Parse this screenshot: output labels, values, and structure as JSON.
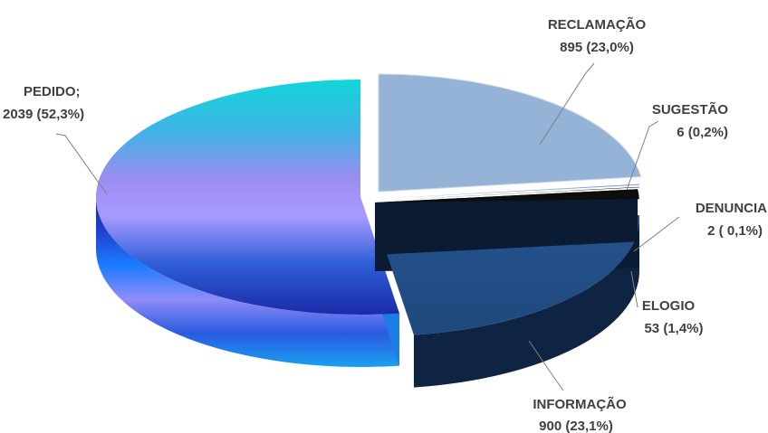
{
  "chart_data": {
    "type": "pie",
    "style": "3d-exploded",
    "slices": [
      {
        "name": "PEDIDO",
        "value": 2039,
        "percent_label": "52,3%",
        "label_line1": "PEDIDO;",
        "label_line2": "2039 (52,3%)",
        "color": "#4a8cff"
      },
      {
        "name": "RECLAMAÇÃO",
        "value": 895,
        "percent_label": "23,0%",
        "label_line1": "RECLAMAÇÃO",
        "label_line2": "895  (23,0%)",
        "color": "#95b3d7"
      },
      {
        "name": "SUGESTÃO",
        "value": 6,
        "percent_label": "0,2%",
        "label_line1": "SUGESTÃO",
        "label_line2": "6  (0,2%)",
        "color": "#8faad6"
      },
      {
        "name": "DENUNCIA",
        "value": 2,
        "percent_label": "0,1%",
        "label_line1": "DENUNCIA",
        "label_line2": "2  ( 0,1%)",
        "color": "#000000"
      },
      {
        "name": "ELOGIO",
        "value": 53,
        "percent_label": "1,4%",
        "label_line1": "ELOGIO",
        "label_line2": "53 (1,4%)",
        "color": "#0d0d0d"
      },
      {
        "name": "INFORMAÇÃO",
        "value": 900,
        "percent_label": "23,1%",
        "label_line1": "INFORMAÇÃO",
        "label_line2": "900 (23,1%)",
        "color": "#1f497d"
      }
    ]
  }
}
